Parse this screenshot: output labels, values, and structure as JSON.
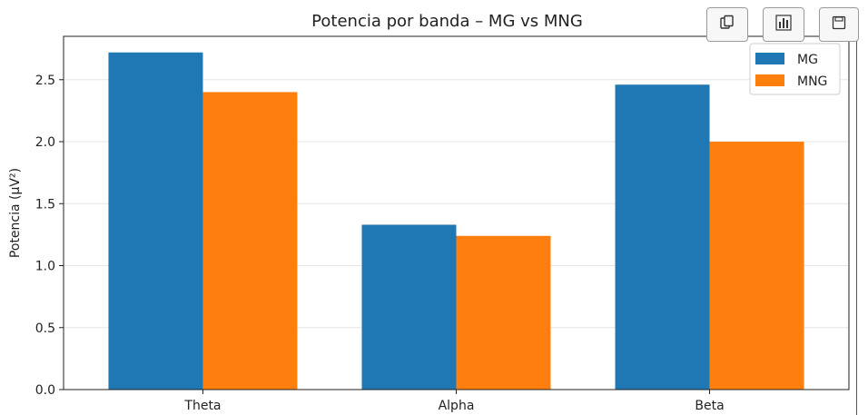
{
  "chart_data": {
    "type": "bar",
    "title": "Potencia por banda – MG vs MNG",
    "xlabel": "",
    "ylabel": "Potencia (µV²)",
    "categories": [
      "Theta",
      "Alpha",
      "Beta"
    ],
    "series": [
      {
        "name": "MG",
        "color": "#1f77b4",
        "values": [
          2.72,
          1.33,
          2.46
        ]
      },
      {
        "name": "MNG",
        "color": "#ff7f0e",
        "values": [
          2.4,
          1.24,
          2.0
        ]
      }
    ],
    "ylim": [
      0,
      2.85
    ],
    "yticks": [
      "0.0",
      "0.5",
      "1.0",
      "1.5",
      "2.0",
      "2.5"
    ],
    "grid": "y",
    "legend": "top-right"
  },
  "toolbar": {
    "icons": [
      "copy-icon",
      "chart-icon",
      "save-icon"
    ]
  }
}
